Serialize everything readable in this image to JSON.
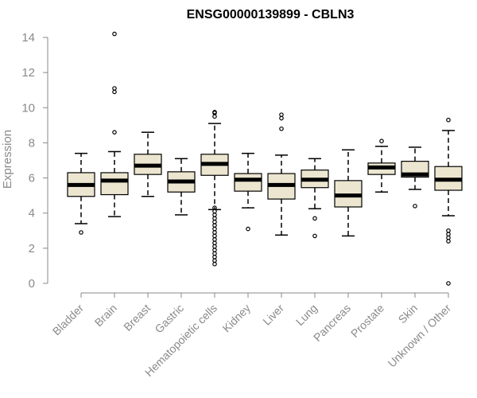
{
  "chart_data": {
    "type": "boxplot",
    "title": "ENSG00000139899 - CBLN3",
    "ylabel": "Expression",
    "ylim": [
      0,
      14
    ],
    "yticks": [
      0,
      2,
      4,
      6,
      8,
      10,
      12,
      14
    ],
    "grid": false,
    "colors": {
      "box_fill": "#ece6d0",
      "line": "#000000",
      "axis": "#8a8a8a"
    },
    "categories": [
      "Bladder",
      "Brain",
      "Breast",
      "Gastric",
      "Hematopoietic cells",
      "Kidney",
      "Liver",
      "Lung",
      "Pancreas",
      "Prostate",
      "Skin",
      "Unknown / Other"
    ],
    "boxes": [
      {
        "category": "Bladder",
        "whisker_low": 3.4,
        "q1": 4.95,
        "median": 5.6,
        "q3": 6.3,
        "whisker_high": 7.4,
        "outliers": [
          2.9
        ]
      },
      {
        "category": "Brain",
        "whisker_low": 3.8,
        "q1": 5.05,
        "median": 5.85,
        "q3": 6.3,
        "whisker_high": 7.5,
        "outliers": [
          8.6,
          10.9,
          11.1,
          14.2
        ]
      },
      {
        "category": "Breast",
        "whisker_low": 4.95,
        "q1": 6.2,
        "median": 6.7,
        "q3": 7.35,
        "whisker_high": 8.6,
        "outliers": []
      },
      {
        "category": "Gastric",
        "whisker_low": 3.9,
        "q1": 5.2,
        "median": 5.8,
        "q3": 6.35,
        "whisker_high": 7.1,
        "outliers": []
      },
      {
        "category": "Hematopoietic cells",
        "whisker_low": 4.2,
        "q1": 6.15,
        "median": 6.8,
        "q3": 7.35,
        "whisker_high": 9.1,
        "outliers": [
          9.5,
          9.7,
          9.75,
          4.3,
          4.1,
          3.9,
          3.7,
          3.5,
          3.3,
          3.1,
          2.9,
          2.7,
          2.5,
          2.3,
          2.1,
          1.9,
          1.7,
          1.5,
          1.3,
          1.1
        ]
      },
      {
        "category": "Kidney",
        "whisker_low": 4.3,
        "q1": 5.25,
        "median": 5.9,
        "q3": 6.25,
        "whisker_high": 7.4,
        "outliers": [
          3.1
        ]
      },
      {
        "category": "Liver",
        "whisker_low": 2.75,
        "q1": 4.8,
        "median": 5.6,
        "q3": 6.25,
        "whisker_high": 7.3,
        "outliers": [
          8.8,
          9.4,
          9.6
        ]
      },
      {
        "category": "Lung",
        "whisker_low": 4.25,
        "q1": 5.45,
        "median": 5.9,
        "q3": 6.45,
        "whisker_high": 7.1,
        "outliers": [
          3.7,
          2.7
        ]
      },
      {
        "category": "Pancreas",
        "whisker_low": 2.7,
        "q1": 4.35,
        "median": 5.0,
        "q3": 5.85,
        "whisker_high": 7.6,
        "outliers": []
      },
      {
        "category": "Prostate",
        "whisker_low": 5.2,
        "q1": 6.2,
        "median": 6.6,
        "q3": 6.85,
        "whisker_high": 7.8,
        "outliers": [
          8.1
        ]
      },
      {
        "category": "Skin",
        "whisker_low": 5.35,
        "q1": 6.05,
        "median": 6.2,
        "q3": 6.95,
        "whisker_high": 7.75,
        "outliers": [
          4.4
        ]
      },
      {
        "category": "Unknown / Other",
        "whisker_low": 3.85,
        "q1": 5.3,
        "median": 5.9,
        "q3": 6.65,
        "whisker_high": 8.7,
        "outliers": [
          9.3,
          3.0,
          2.8,
          2.6,
          2.4,
          0.0
        ]
      }
    ]
  }
}
